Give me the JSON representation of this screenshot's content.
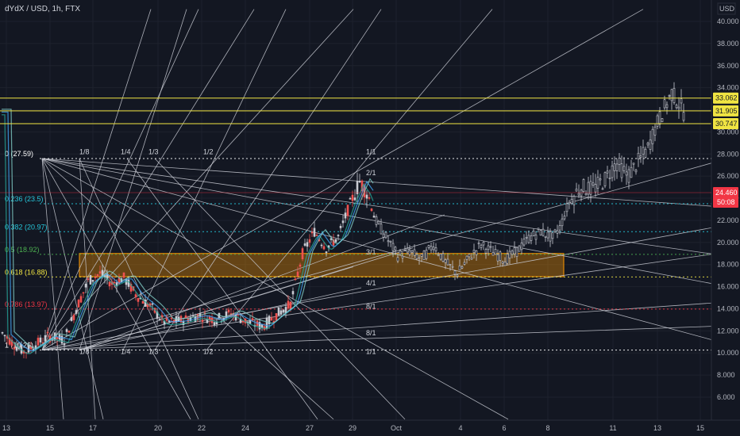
{
  "chart_data": {
    "type": "candlestick",
    "title": "dYdX / USD, 1h, FTX",
    "currency": "USD",
    "ylim": [
      4.0,
      41.0
    ],
    "y_ticks": [
      6.0,
      8.0,
      10.0,
      12.0,
      14.0,
      16.0,
      18.0,
      20.0,
      22.0,
      24.0,
      26.0,
      28.0,
      30.0,
      32.0,
      34.0,
      36.0,
      38.0,
      40.0
    ],
    "y_tick_labels": [
      "6.000",
      "8.000",
      "10.000",
      "12.000",
      "14.000",
      "16.000",
      "18.000",
      "20.000",
      "22.000",
      "24.000",
      "26.000",
      "28.000",
      "30.000",
      "32.000",
      "34.000",
      "36.000",
      "38.000",
      "40.000"
    ],
    "x_ticks": [
      "13",
      "15",
      "17",
      "20",
      "22",
      "24",
      "27",
      "29",
      "Oct",
      "4",
      "6",
      "8",
      "11",
      "13",
      "15"
    ],
    "horizontal_levels": [
      {
        "value": 33.062,
        "label": "33.062",
        "color": "#f0e442"
      },
      {
        "value": 31.905,
        "label": "31.905",
        "color": "#f0e442"
      },
      {
        "value": 30.747,
        "label": "30.747",
        "color": "#f0e442"
      }
    ],
    "current_price": {
      "value": "24.460",
      "countdown": "50:08",
      "color": "#f23645"
    },
    "fib_levels": [
      {
        "label": "0 (27.59)",
        "value": 27.59,
        "color": "#ffffff"
      },
      {
        "label": "0.236 (23.5)",
        "value": 23.5,
        "color": "#26c6da"
      },
      {
        "label": "0.382 (20.97)",
        "value": 20.97,
        "color": "#26c6da"
      },
      {
        "label": "0.5 (18.92)",
        "value": 18.92,
        "color": "#4caf50"
      },
      {
        "label": "0.618 (16.88)",
        "value": 16.88,
        "color": "#f0e442"
      },
      {
        "label": "0.786 (13.97)",
        "value": 13.97,
        "color": "#f23645"
      },
      {
        "label": "1 (10.26)",
        "value": 10.26,
        "color": "#ffffff"
      }
    ],
    "fan_labels": [
      "1/8",
      "1/4",
      "1/3",
      "1/2",
      "1/1",
      "2/1",
      "3/1",
      "4/1",
      "8/1"
    ],
    "demand_zone": {
      "top": 19.0,
      "bottom": 16.9,
      "color": "#ff9800"
    },
    "candle_series_summary": [
      {
        "period": "13",
        "low": 9.0,
        "high": 13.0
      },
      {
        "period": "17",
        "low": 11.0,
        "high": 19.0
      },
      {
        "period": "20-24",
        "low": 11.0,
        "high": 16.0
      },
      {
        "period": "27-29",
        "low": 14.0,
        "high": 27.5
      },
      {
        "period": "Oct-6",
        "low": 16.5,
        "high": 21.0
      },
      {
        "period": "8-11",
        "low": 21.0,
        "high": 30.0
      },
      {
        "period": "13",
        "low": 30.5,
        "high": 35.5
      }
    ]
  }
}
